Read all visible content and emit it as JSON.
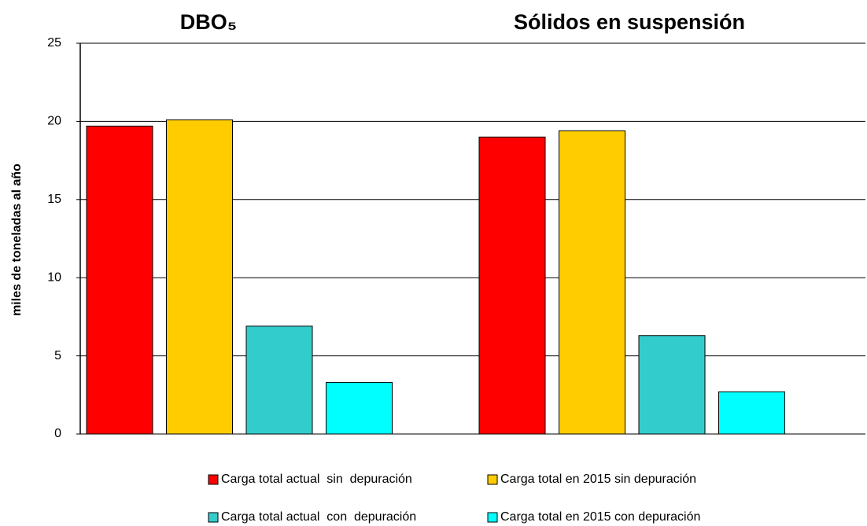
{
  "chart_data": {
    "type": "bar",
    "categories": [
      "DBO₅",
      "Sólidos en suspensión"
    ],
    "y_label": "miles de toneladas al año",
    "series": [
      {
        "name": "Carga total actual  sin  depuración",
        "color": "#ff0000",
        "values": [
          19.7,
          19.0
        ]
      },
      {
        "name": "Carga total en 2015 sin depuración",
        "color": "#ffcc00",
        "values": [
          20.1,
          19.4
        ]
      },
      {
        "name": "Carga total actual  con  depuración",
        "color": "#33cccc",
        "values": [
          6.9,
          6.3
        ]
      },
      {
        "name": "Carga total en 2015 con depuración",
        "color": "#00ffff",
        "values": [
          3.3,
          2.7
        ]
      }
    ],
    "ylim": [
      0,
      25
    ],
    "yticks": [
      0,
      5,
      10,
      15,
      20,
      25
    ],
    "grid": true,
    "legend": "bottom"
  }
}
